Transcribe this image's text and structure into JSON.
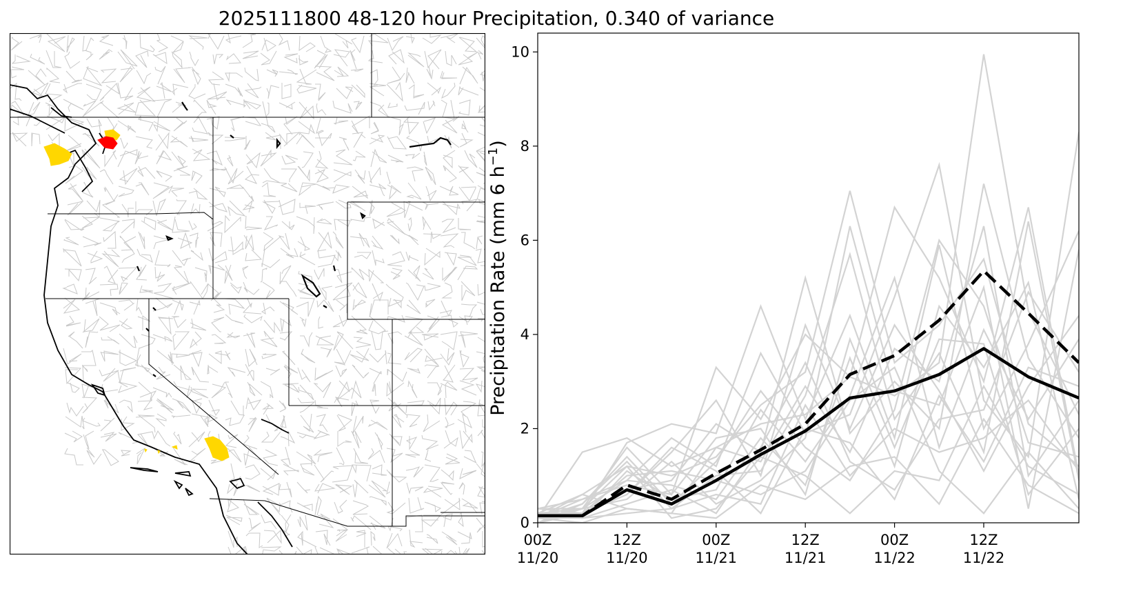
{
  "figure": {
    "title": "2025111800 48-120 hour Precipitation, 0.340 of variance"
  },
  "colors": {
    "basin_lines": "#bfbfbf",
    "ensemble": "#d3d3d3",
    "highlight_yellow": "#ffd700",
    "highlight_red": "#ff0000",
    "mean": "#000000"
  },
  "chart_data": {
    "type": "line",
    "title": "",
    "xlabel": "",
    "ylabel": "Precipitation Rate (mm 6 h",
    "ylabel_superscript": "−1",
    "ylabel_suffix": ")",
    "ylim": [
      0,
      10.4
    ],
    "xlim": [
      0,
      18.2
    ],
    "grid": false,
    "x_ticks": [
      {
        "x": 0,
        "line1": "00Z",
        "line2": "11/20"
      },
      {
        "x": 3,
        "line1": "12Z",
        "line2": "11/20"
      },
      {
        "x": 6,
        "line1": "00Z",
        "line2": "11/21"
      },
      {
        "x": 9,
        "line1": "12Z",
        "line2": "11/21"
      },
      {
        "x": 12,
        "line1": "00Z",
        "line2": "11/22"
      },
      {
        "x": 15,
        "line1": "12Z",
        "line2": "11/22"
      }
    ],
    "y_ticks": [
      0,
      2,
      4,
      6,
      8,
      10
    ],
    "series": [
      {
        "style": "dashed",
        "color": "#000000",
        "x": [
          0,
          1.5,
          3,
          4.5,
          6,
          7.5,
          9,
          10.5,
          12,
          13.5,
          15,
          16.5,
          18.2
        ],
        "values": [
          0.15,
          0.15,
          0.8,
          0.5,
          1.05,
          1.55,
          2.1,
          3.15,
          3.55,
          4.3,
          5.35,
          4.45,
          3.4
        ]
      },
      {
        "style": "solid",
        "color": "#000000",
        "x": [
          0,
          1.5,
          3,
          4.5,
          6,
          7.5,
          9,
          10.5,
          12,
          13.5,
          15,
          16.5,
          18.2
        ],
        "values": [
          0.15,
          0.15,
          0.7,
          0.4,
          0.9,
          1.45,
          1.95,
          2.65,
          2.8,
          3.15,
          3.7,
          3.1,
          2.65
        ]
      }
    ],
    "ensemble_members": {
      "x": [
        0,
        1.5,
        3,
        4.5,
        6,
        7.5,
        9,
        10.5,
        12,
        13.5,
        15,
        16.5,
        18.2
      ],
      "members": [
        [
          0.1,
          1.5,
          1.8,
          1.2,
          1.6,
          2.1,
          2.3,
          3.1,
          2.7,
          3.4,
          9.95,
          4.5,
          2.3
        ],
        [
          0.2,
          0.6,
          1.2,
          1.0,
          1.4,
          2.5,
          3.2,
          7.05,
          3.4,
          4.2,
          5.6,
          2.1,
          1.2
        ],
        [
          0.3,
          0.3,
          1.6,
          0.6,
          3.3,
          2.2,
          4.0,
          3.1,
          6.7,
          5.2,
          3.0,
          6.7,
          1.0
        ],
        [
          0.1,
          0.5,
          0.9,
          1.8,
          1.2,
          3.6,
          1.9,
          2.3,
          4.8,
          7.6,
          2.6,
          1.4,
          8.3
        ],
        [
          0.2,
          0.2,
          0.7,
          0.9,
          2.1,
          1.5,
          5.2,
          1.9,
          3.0,
          2.0,
          7.2,
          3.5,
          1.8
        ],
        [
          0.0,
          0.4,
          1.3,
          0.3,
          1.0,
          1.1,
          2.7,
          5.7,
          2.2,
          3.6,
          1.5,
          6.4,
          0.9
        ],
        [
          0.1,
          0.3,
          0.5,
          1.3,
          0.4,
          0.9,
          1.8,
          6.3,
          2.8,
          2.5,
          5.0,
          0.3,
          5.8
        ],
        [
          0.2,
          0.1,
          1.1,
          0.5,
          0.7,
          2.4,
          1.3,
          2.7,
          5.2,
          1.6,
          4.1,
          2.2,
          3.9
        ],
        [
          0.3,
          0.2,
          1.7,
          2.1,
          1.9,
          4.6,
          2.2,
          4.4,
          1.8,
          5.9,
          2.0,
          3.8,
          6.2
        ],
        [
          0.1,
          0.6,
          0.3,
          0.2,
          1.6,
          1.3,
          2.9,
          1.5,
          3.7,
          3.0,
          6.3,
          1.0,
          2.6
        ],
        [
          0.2,
          0.3,
          0.9,
          0.8,
          0.5,
          1.8,
          0.8,
          3.5,
          1.2,
          4.6,
          3.3,
          5.1,
          0.5
        ],
        [
          0.0,
          0.2,
          0.6,
          1.5,
          2.6,
          1.0,
          4.2,
          2.0,
          4.2,
          2.8,
          1.1,
          2.9,
          4.4
        ],
        [
          0.1,
          0.4,
          1.4,
          0.4,
          1.3,
          2.8,
          1.6,
          0.9,
          2.4,
          6.0,
          4.6,
          1.7,
          1.4
        ],
        [
          0.2,
          0.1,
          0.4,
          0.7,
          0.2,
          1.6,
          3.4,
          1.3,
          0.7,
          2.2,
          2.4,
          4.9,
          3.2
        ],
        [
          0.1,
          0.2,
          1.0,
          1.1,
          0.9,
          0.6,
          1.1,
          2.6,
          3.3,
          1.1,
          0.2,
          1.5,
          0.3
        ],
        [
          0.3,
          0.5,
          0.8,
          0.6,
          1.8,
          2.0,
          0.6,
          3.9,
          1.6,
          3.9,
          3.8,
          0.6,
          2.0
        ],
        [
          0.1,
          0.1,
          0.2,
          0.3,
          0.6,
          0.4,
          2.5,
          1.0,
          2.0,
          1.5,
          1.8,
          2.6,
          1.1
        ],
        [
          0.0,
          0.3,
          1.2,
          0.1,
          0.3,
          1.4,
          1.0,
          0.2,
          1.1,
          0.9,
          2.9,
          1.2,
          0.6
        ],
        [
          0.2,
          0.2,
          0.6,
          1.6,
          1.1,
          0.2,
          2.0,
          1.7,
          0.5,
          2.7,
          1.3,
          3.3,
          2.9
        ],
        [
          0.1,
          0.0,
          0.3,
          0.2,
          0.1,
          0.8,
          0.5,
          1.2,
          1.4,
          0.4,
          2.2,
          0.8,
          0.2
        ]
      ]
    }
  }
}
